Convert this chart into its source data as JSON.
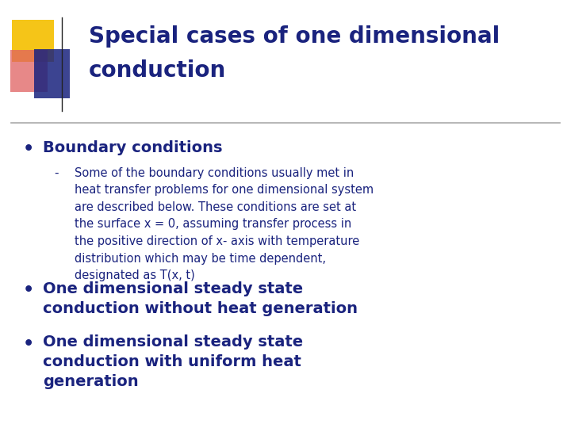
{
  "title_line1": "Special cases of one dimensional",
  "title_line2": "conduction",
  "title_color": "#1a237e",
  "background_color": "#ffffff",
  "bullet1_bold": "Boundary conditions",
  "bullet1_color": "#1a237e",
  "sub_bullet_text": "Some of the boundary conditions usually met in\nheat transfer problems for one dimensional system\nare described below. These conditions are set at\nthe surface x = 0, assuming transfer process in\nthe positive direction of x- axis with temperature\ndistribution which may be time dependent,\ndesignated as T(x, t)",
  "sub_bullet_color": "#1a237e",
  "bullet2_bold": "One dimensional steady state\nconduction without heat generation",
  "bullet2_color": "#1a237e",
  "bullet3_bold": "One dimensional steady state\nconduction with uniform heat\ngeneration",
  "bullet3_color": "#1a237e",
  "accent_yellow": "#f5c518",
  "accent_red": "#e06060",
  "accent_blue": "#1a237e",
  "separator_color": "#aaaaaa",
  "fig_width": 7.2,
  "fig_height": 5.4,
  "dpi": 100
}
